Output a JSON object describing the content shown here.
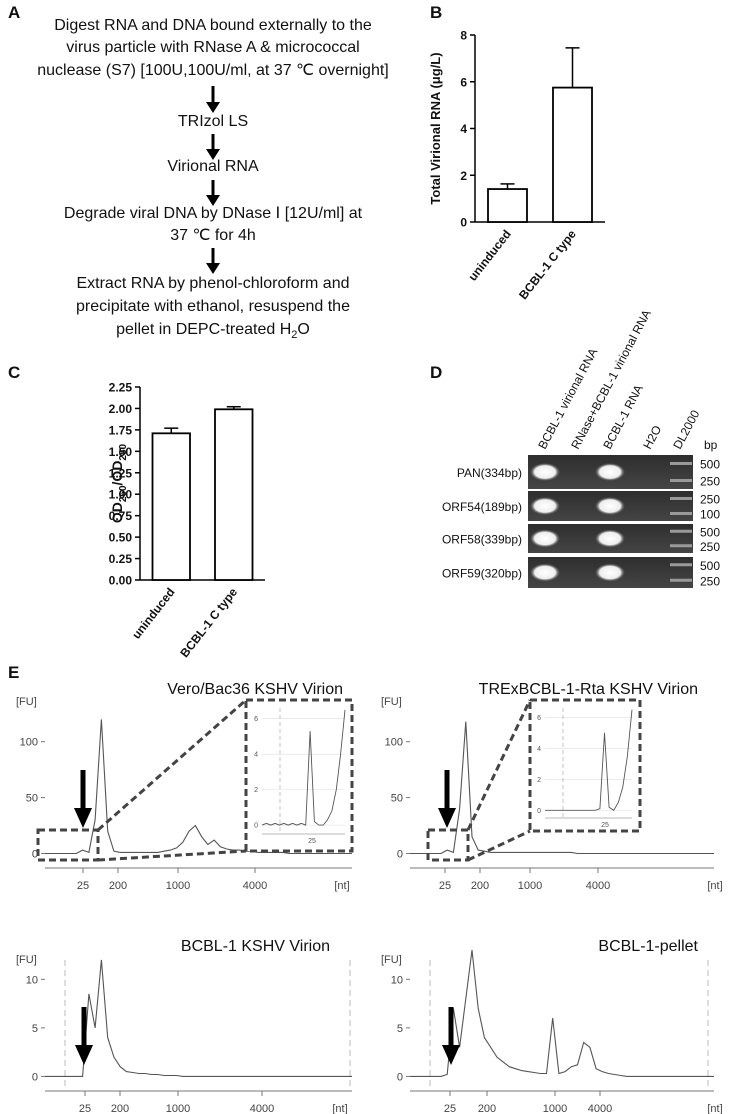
{
  "panel_labels": [
    "A",
    "B",
    "C",
    "D",
    "E"
  ],
  "flowchart": {
    "steps": [
      [
        "Digest RNA and DNA bound externally to the",
        "virus particle with RNase A & micrococcal",
        "nuclease (S7) [100U,100U/ml, at 37 ℃ overnight]"
      ],
      [
        "TRIzol LS"
      ],
      [
        "Virional RNA"
      ],
      [
        "Degrade viral DNA by DNase Ⅰ [12U/ml] at",
        "37 ℃ for 4h"
      ],
      [
        "Extract RNA by phenol-chloroform and",
        "precipitate with ethanol, resuspend the"
      ]
    ],
    "final_line": [
      "pellet in DEPC-treated H",
      "2",
      "O"
    ]
  },
  "gel": {
    "lanes": [
      "BCBL-1 virional RNA",
      "RNase+BCBL-1 virional RNA",
      "BCBL-1 RNA",
      "H2O",
      "DL2000"
    ],
    "bp_header": "bp",
    "rows": [
      {
        "label": "PAN(334bp)",
        "markers": [
          500,
          250
        ]
      },
      {
        "label": "ORF54(189bp)",
        "markers": [
          250,
          100
        ]
      },
      {
        "label": "ORF58(339bp)",
        "markers": [
          500,
          250
        ]
      },
      {
        "label": "ORF59(320bp)",
        "markers": [
          500,
          250
        ]
      }
    ]
  },
  "chart_data": [
    {
      "type": "bar",
      "categories": [
        "uninduced",
        "BCBL-1 C type"
      ],
      "values": [
        1.41,
        5.75
      ],
      "errors": [
        0.22,
        1.7
      ],
      "ylim": [
        0,
        8
      ],
      "yticks": [
        0,
        2,
        4,
        6,
        8
      ],
      "ylabel": "Total Virional RNA (μg/L)",
      "color": "#ffffff",
      "edgecolor": "#000000"
    },
    {
      "type": "bar",
      "categories": [
        "uninduced",
        "BCBL-1 C type"
      ],
      "values": [
        1.71,
        1.99
      ],
      "errors": [
        0.06,
        0.03
      ],
      "ylim": [
        0,
        2.25
      ],
      "yticks": [
        {
          "value": 0,
          "label": "0.00"
        },
        {
          "value": 0.25,
          "label": "0.25"
        },
        {
          "value": 0.5,
          "label": "0.50"
        },
        {
          "value": 0.75,
          "label": "0.75"
        },
        {
          "value": 1,
          "label": "1.00"
        },
        {
          "value": 1.25,
          "label": "1.25"
        },
        {
          "value": 1.5,
          "label": "1.50"
        },
        {
          "value": 1.75,
          "label": "1.75"
        },
        {
          "value": 2,
          "label": "2.00"
        },
        {
          "value": 2.25,
          "label": "2.25"
        }
      ],
      "ylabel": [
        "OD",
        "260",
        "/OD",
        "280"
      ],
      "color": "#ffffff",
      "edgecolor": "#000000"
    },
    {
      "type": "line",
      "title": "Vero/Bac36 KSHV Virion",
      "ylabel": "[FU]",
      "xlabel": "[nt]",
      "xtick_labels": [
        "25",
        "200",
        "1000",
        "4000"
      ],
      "ylim": [
        -13,
        140
      ],
      "yticks": [
        0,
        50,
        100
      ],
      "color": "#555555",
      "values": [
        0,
        0,
        0,
        0,
        0,
        0,
        3,
        1,
        30,
        120,
        20,
        2,
        1,
        1,
        1,
        1,
        1,
        1,
        1,
        2,
        3,
        5,
        10,
        20,
        25,
        15,
        8,
        12,
        6,
        4,
        3,
        3,
        2,
        2,
        1,
        1,
        1,
        1,
        1,
        0,
        0,
        0,
        0,
        0,
        0,
        0,
        0,
        0,
        0,
        0
      ],
      "inset": {
        "ylim": [
          -0.5,
          6.6
        ],
        "yticks": [
          0,
          2,
          4,
          6
        ],
        "xtick_label": "25",
        "values": [
          0,
          0.1,
          0,
          0.1,
          0,
          0.1,
          0,
          0.1,
          0,
          0.1,
          0,
          5.3,
          0.2,
          0,
          0,
          0.3,
          0.8,
          2,
          4,
          6.5
        ]
      }
    },
    {
      "type": "line",
      "title": "TRExBCBL-1-Rta KSHV Virion",
      "ylabel": "[FU]",
      "xlabel": "[nt]",
      "xtick_labels": [
        "25",
        "200",
        "1000",
        "4000"
      ],
      "ylim": [
        -13,
        140
      ],
      "yticks": [
        0,
        50,
        100
      ],
      "color": "#555555",
      "values": [
        0,
        0,
        0,
        0,
        0,
        0,
        3,
        1,
        40,
        118,
        15,
        3,
        2,
        1,
        1,
        1,
        1,
        1,
        1,
        1,
        1,
        1,
        1,
        1,
        1,
        1,
        1,
        0,
        0,
        0,
        0,
        0,
        0,
        0,
        0,
        0,
        0,
        0,
        0,
        0,
        0,
        0,
        0,
        0,
        0,
        0,
        0,
        0,
        0,
        0
      ],
      "inset": {
        "ylim": [
          -0.5,
          6.6
        ],
        "yticks": [
          0,
          2,
          4,
          6
        ],
        "xtick_label": "25",
        "values": [
          0,
          0,
          0,
          0,
          0,
          0,
          0,
          0,
          0,
          0,
          0,
          0,
          0.1,
          5,
          0.2,
          0,
          0.5,
          1.5,
          3.5,
          6.5
        ]
      }
    },
    {
      "type": "line",
      "title": "BCBL-1 KSHV Virion",
      "ylabel": "[FU]",
      "xlabel": "[nt]",
      "xtick_labels": [
        "25",
        "200",
        "1000",
        "4000"
      ],
      "ylim": [
        -1.5,
        12.5
      ],
      "yticks": [
        0,
        5,
        10
      ],
      "color": "#555555",
      "values": [
        0,
        0,
        0,
        0,
        0,
        0,
        0,
        8.5,
        5,
        12,
        4,
        2,
        1,
        0.5,
        0.4,
        0.3,
        0.3,
        0.2,
        0.2,
        0.1,
        0.1,
        0.1,
        0,
        0,
        0,
        0,
        0,
        0,
        0,
        0,
        0,
        0,
        0,
        0,
        0,
        0,
        0,
        0,
        0,
        0,
        0,
        0,
        0,
        0,
        0,
        0,
        0,
        0,
        0,
        0
      ]
    },
    {
      "type": "line",
      "title": "BCBL-1-pellet",
      "ylabel": "[FU]",
      "xlabel": "[nt]",
      "xtick_labels": [
        "25",
        "200",
        "1000",
        "4000"
      ],
      "ylim": [
        -1.5,
        12.5
      ],
      "yticks": [
        0,
        5,
        10
      ],
      "color": "#555555",
      "values": [
        0,
        0,
        0,
        0,
        0,
        0,
        0.2,
        7,
        3,
        8,
        13,
        7,
        4,
        3,
        2,
        1.5,
        1,
        0.8,
        0.6,
        0.5,
        0.4,
        0.3,
        0.3,
        6,
        0.3,
        0.5,
        1,
        1.2,
        3.5,
        3,
        0.8,
        0.5,
        0.3,
        0.2,
        0.1,
        0,
        0,
        0,
        0,
        0,
        0,
        0,
        0,
        0,
        0,
        0,
        0,
        0,
        0,
        0
      ]
    }
  ]
}
